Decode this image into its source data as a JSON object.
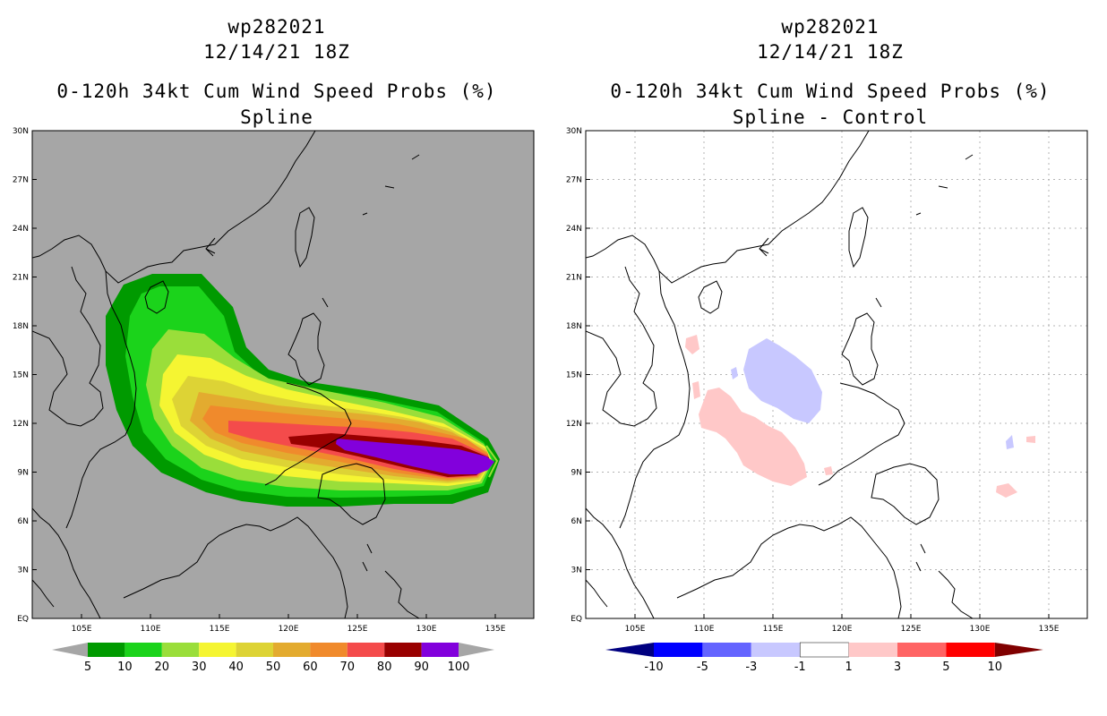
{
  "colors": {
    "land_bg": "#a6a6a6",
    "left_levels": [
      "#009a00",
      "#1bd31b",
      "#9ade3a",
      "#f5f532",
      "#ddd335",
      "#e3ab2f",
      "#f08a2c",
      "#f44b4b",
      "#990000",
      "#8200dc"
    ],
    "right_levels": [
      "#000080",
      "#0000ff",
      "#6464ff",
      "#c8c8ff",
      "#ffffff",
      "#ffc8c8",
      "#ff6464",
      "#ff0000",
      "#800000"
    ]
  },
  "left": {
    "title1": "wp282021",
    "title2": "12/14/21 18Z",
    "title3": "0-120h 34kt Cum Wind Speed Probs (%)",
    "title4": "Spline",
    "lat_labels": [
      "30N",
      "27N",
      "24N",
      "21N",
      "18N",
      "15N",
      "12N",
      "9N",
      "6N",
      "3N",
      "EQ"
    ],
    "lon_labels": [
      "105E",
      "110E",
      "115E",
      "120E",
      "125E",
      "130E",
      "135E"
    ],
    "colorbar_labels": [
      "5",
      "10",
      "20",
      "30",
      "40",
      "50",
      "60",
      "70",
      "80",
      "90",
      "100"
    ]
  },
  "right": {
    "title1": "wp282021",
    "title2": "12/14/21 18Z",
    "title3": "0-120h 34kt Cum Wind Speed Probs (%)",
    "title4": "Spline - Control",
    "lat_labels": [
      "30N",
      "27N",
      "24N",
      "21N",
      "18N",
      "15N",
      "12N",
      "9N",
      "6N",
      "3N",
      "EQ"
    ],
    "lon_labels": [
      "105E",
      "110E",
      "115E",
      "120E",
      "125E",
      "130E",
      "135E"
    ],
    "colorbar_labels": [
      "-10",
      "-5",
      "-3",
      "-1",
      "1",
      "3",
      "5",
      "10"
    ]
  }
}
